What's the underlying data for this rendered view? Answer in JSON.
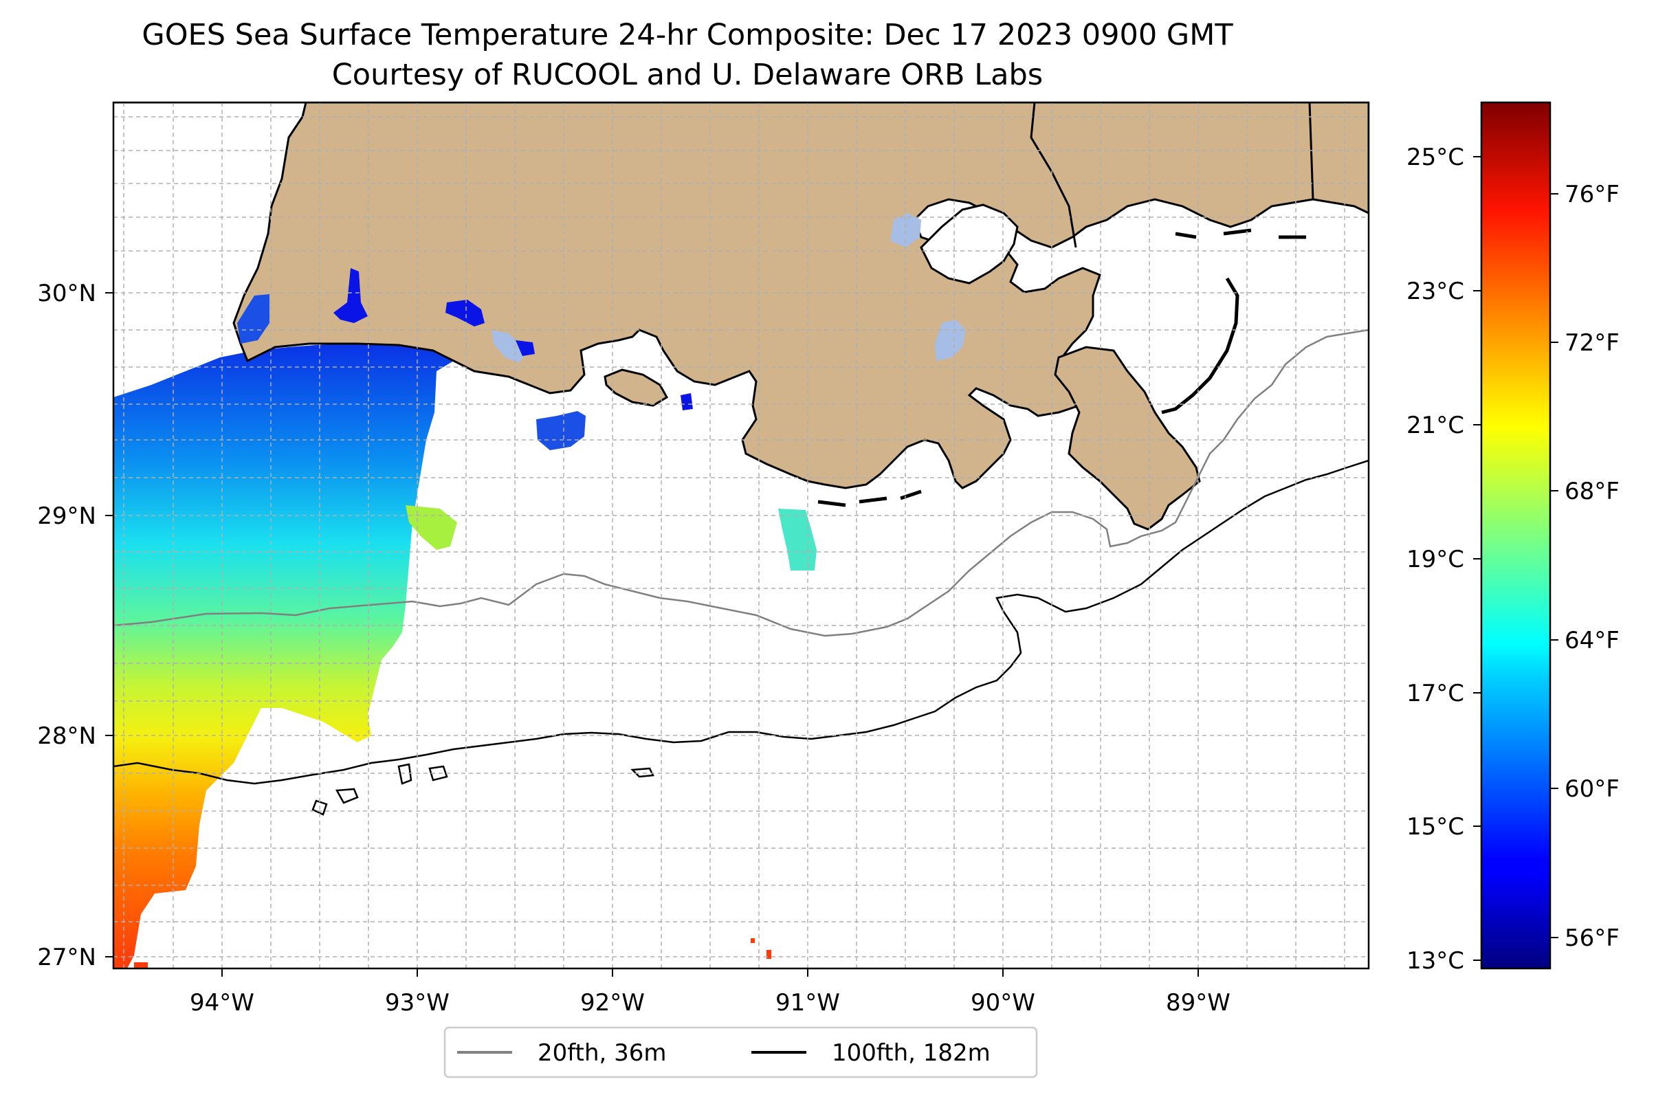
{
  "title_line1": "GOES Sea Surface Temperature 24-hr Composite: Dec 17 2023 0900 GMT",
  "title_line2": "Courtesy of RUCOOL and U. Delaware ORB Labs",
  "axes": {
    "lat_ticks": [
      "30°N",
      "29°N",
      "28°N",
      "27°N"
    ],
    "lon_ticks": [
      "94°W",
      "93°W",
      "92°W",
      "91°W",
      "90°W",
      "89°W"
    ]
  },
  "colorbar": {
    "celsius_ticks": [
      "25°C",
      "23°C",
      "21°C",
      "19°C",
      "17°C",
      "15°C",
      "13°C"
    ],
    "fahrenheit_ticks": [
      "76°F",
      "72°F",
      "68°F",
      "64°F",
      "60°F",
      "56°F"
    ],
    "colormap": "jet"
  },
  "legend": {
    "items": [
      {
        "label": "20fth, 36m",
        "color": "#808080"
      },
      {
        "label": "100fth, 182m",
        "color": "#000000"
      }
    ]
  },
  "colors": {
    "land": "#d2b48c",
    "water_no_data": "#ffffff",
    "grid": "#b0b0b0",
    "lake": "#a6bde6"
  }
}
